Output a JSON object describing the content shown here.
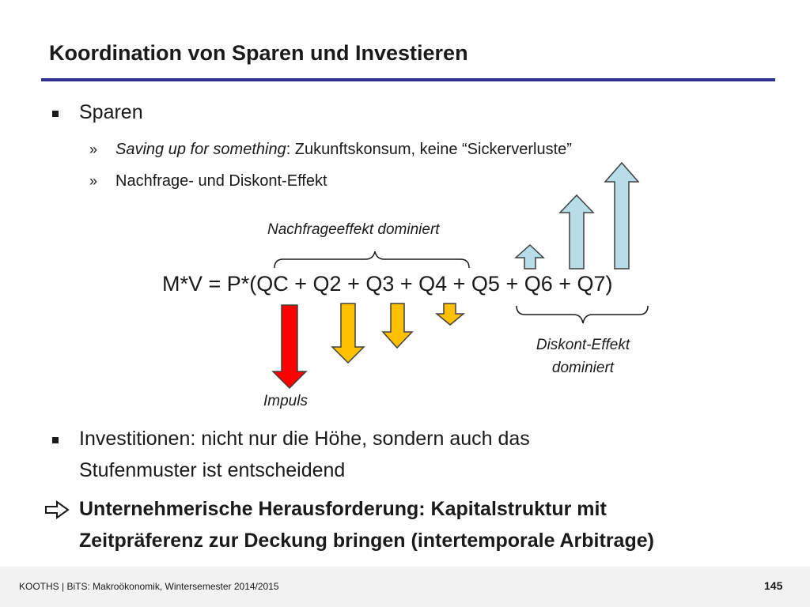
{
  "title": "Koordination von Sparen und Investieren",
  "bullets": {
    "sparen": {
      "label": "Sparen",
      "sub1_italic": "Saving up for something",
      "sub1_rest": ": Zukunftskonsum, keine “Sickerverluste”",
      "sub2": "Nachfrage- und Diskont-Effekt",
      "marker": "»"
    },
    "investitionen": {
      "line1": "Investitionen: nicht nur die Höhe, sondern auch das",
      "line2": "Stufenmuster ist entscheidend"
    },
    "conclusion": {
      "line1": "Unternehmerische Herausforderung: Kapitalstruktur mit",
      "line2": "Zeitpräferenz zur Deckung bringen (intertemporale Arbitrage)"
    }
  },
  "diagram": {
    "equation": "M*V = P*(QC + Q2 + Q3 + Q4 + Q5 + Q6 + Q7)",
    "annotation_top": "Nachfrageeffekt dominiert",
    "annotation_right_line1": "Diskont-Effekt",
    "annotation_right_line2": "dominiert",
    "annotation_impulse": "Impuls",
    "colors": {
      "impulse": "#ff0000",
      "decline": "#ffc000",
      "rise": "#b7dde8"
    }
  },
  "footer": {
    "text": "KOOTHS | BiTS: Makroökonomik, Wintersemester 2014/2015",
    "page": "145"
  }
}
